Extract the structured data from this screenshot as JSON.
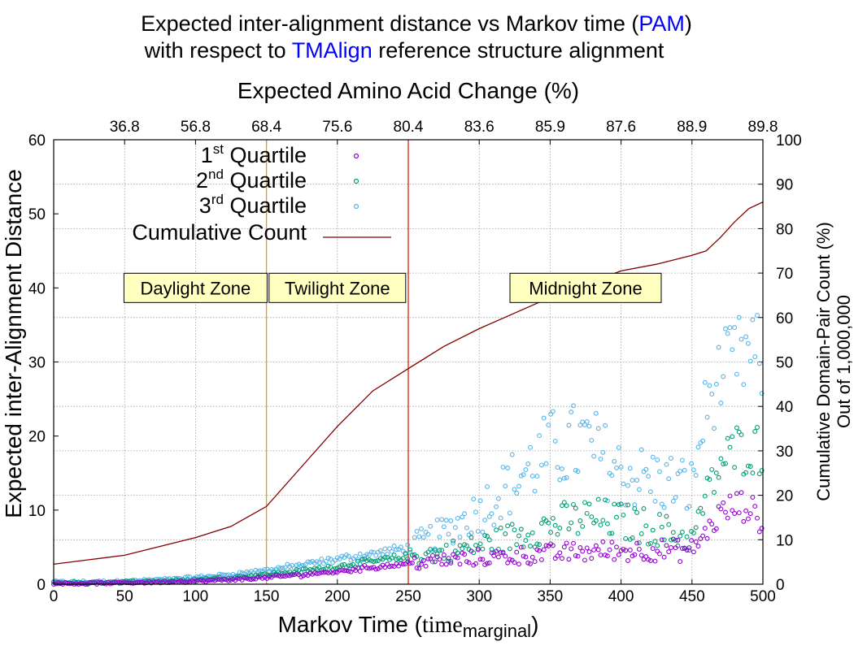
{
  "title": {
    "line1_prefix": "Expected inter-alignment distance vs Markov time (",
    "line1_highlight": "PAM",
    "line1_suffix": ")",
    "line2_prefix": "with respect to ",
    "line2_highlight": "TMAlign",
    "line2_suffix": " reference structure alignment",
    "highlight_color": "#0000ff"
  },
  "axes": {
    "x_label_main": "Markov Time (",
    "x_label_time": "time",
    "x_label_sub": "marginal",
    "x_label_close": ")",
    "x2_label": "Expected Amino Acid Change (%)",
    "y_label": "Expected inter-Alignment Distance",
    "y2_label_line1": "Cumulative Domain-Pair Count (%)",
    "y2_label_line2": "Out of 1,000,000",
    "x_ticks": [
      "0",
      "50",
      "100",
      "150",
      "200",
      "250",
      "300",
      "350",
      "400",
      "450",
      "500"
    ],
    "x2_ticks": [
      "36.8",
      "56.8",
      "68.4",
      "75.6",
      "80.4",
      "83.6",
      "85.9",
      "87.6",
      "88.9",
      "89.8"
    ],
    "y_ticks": [
      "0",
      "10",
      "20",
      "30",
      "40",
      "50",
      "60"
    ],
    "y2_ticks": [
      "0",
      "10",
      "20",
      "30",
      "40",
      "50",
      "60",
      "70",
      "80",
      "90",
      "100"
    ]
  },
  "legend": {
    "q1_num": "1",
    "q1_sup": "st",
    "q1_word": " Quartile",
    "q2_num": "2",
    "q2_sup": "nd",
    "q2_word": " Quartile",
    "q3_num": "3",
    "q3_sup": "rd",
    "q3_word": " Quartile",
    "cumulative": "Cumulative Count"
  },
  "zones": {
    "daylight": "Daylight Zone",
    "twilight": "Twilight Zone",
    "midnight": "Midnight Zone"
  },
  "colors": {
    "q1": "#9400d3",
    "q2": "#009e73",
    "q3": "#56b4e9",
    "cumulative": "#800000",
    "boundary1": "#e69f00",
    "boundary2": "#e51e10",
    "zone_fill": "#ffffc0",
    "grid": "#a0a0a0"
  },
  "chart_data": {
    "type": "scatter",
    "x_range": [
      0,
      500
    ],
    "y_range": [
      0,
      60
    ],
    "y2_range": [
      0,
      100
    ],
    "grid": true,
    "legend_position": "top-left",
    "zone_boundaries": [
      150,
      250
    ],
    "series": [
      {
        "name": "1st Quartile",
        "marker": "circle",
        "x": [
          0,
          25,
          50,
          75,
          100,
          125,
          150,
          175,
          200,
          225,
          250,
          275,
          300,
          325,
          350,
          375,
          400,
          425,
          450,
          460,
          470,
          480,
          490,
          500
        ],
        "y": [
          0.1,
          0.1,
          0.2,
          0.3,
          0.4,
          0.6,
          0.9,
          1.3,
          1.7,
          2.3,
          2.8,
          3.2,
          3.5,
          3.8,
          4.1,
          4.4,
          4.5,
          4.6,
          4.6,
          7.0,
          9.5,
          10.5,
          10.5,
          8.0
        ]
      },
      {
        "name": "2nd Quartile",
        "marker": "circle",
        "x": [
          0,
          25,
          50,
          75,
          100,
          125,
          150,
          175,
          200,
          225,
          250,
          275,
          300,
          325,
          350,
          375,
          400,
          425,
          450,
          460,
          470,
          480,
          490,
          500
        ],
        "y": [
          0.2,
          0.2,
          0.3,
          0.4,
          0.6,
          0.9,
          1.3,
          1.8,
          2.4,
          3.1,
          3.7,
          4.3,
          5.2,
          6.5,
          8.0,
          9.0,
          8.5,
          7.5,
          6.0,
          12.0,
          16.0,
          18.0,
          18.5,
          18.0
        ]
      },
      {
        "name": "3rd Quartile",
        "marker": "circle",
        "x": [
          0,
          25,
          50,
          75,
          100,
          125,
          150,
          175,
          200,
          225,
          250,
          275,
          300,
          325,
          350,
          375,
          400,
          425,
          450,
          460,
          470,
          480,
          490,
          500
        ],
        "y": [
          0.3,
          0.3,
          0.4,
          0.6,
          0.9,
          1.3,
          1.9,
          2.6,
          3.4,
          4.1,
          4.9,
          7.0,
          10.0,
          14.0,
          18.0,
          19.0,
          15.0,
          14.0,
          13.0,
          24.0,
          28.0,
          30.0,
          31.0,
          30.0
        ]
      },
      {
        "name": "Cumulative Count",
        "axis": "y2",
        "style": "line",
        "x": [
          0,
          25,
          50,
          75,
          100,
          125,
          150,
          175,
          200,
          225,
          250,
          275,
          300,
          325,
          350,
          375,
          400,
          425,
          450,
          460,
          470,
          480,
          490,
          500
        ],
        "y": [
          4.5,
          5.5,
          6.5,
          8.5,
          10.5,
          13.0,
          17.5,
          26.5,
          35.5,
          43.5,
          48.5,
          53.5,
          57.5,
          61.0,
          64.5,
          67.5,
          70.5,
          72.0,
          74.0,
          75.0,
          78.0,
          81.5,
          84.5,
          86.0
        ]
      }
    ]
  }
}
